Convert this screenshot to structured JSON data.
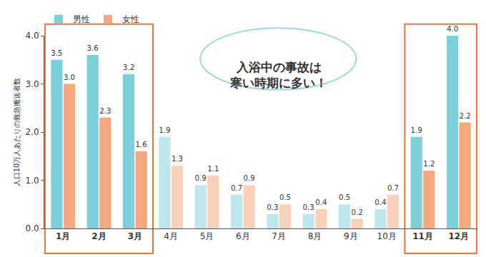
{
  "chart_data": {
    "type": "bar",
    "y_label": "人口10万人あたりの救急搬送者数",
    "categories": [
      "1月",
      "2月",
      "3月",
      "4月",
      "5月",
      "6月",
      "7月",
      "8月",
      "9月",
      "10月",
      "11月",
      "12月"
    ],
    "series": [
      {
        "name": "男性",
        "color": "#7ecfdc",
        "colors": [
          "#7ecfdc",
          "#7ecfdc",
          "#7ecfdc",
          "#bde6ee",
          "#bde6ee",
          "#bde6ee",
          "#bde6ee",
          "#bde6ee",
          "#bde6ee",
          "#bde6ee",
          "#7ecfdc",
          "#7ecfdc"
        ],
        "values": [
          3.5,
          3.6,
          3.2,
          1.9,
          0.9,
          0.7,
          0.3,
          0.3,
          0.5,
          0.4,
          1.9,
          4.0
        ],
        "value_labels": [
          "3.5",
          "3.6",
          "3.2",
          "1.9",
          "0.9",
          "0.7",
          "0.3",
          "0.3",
          "0.5",
          "0.4",
          "1.9",
          "4.0"
        ]
      },
      {
        "name": "女性",
        "color": "#f5a77e",
        "colors": [
          "#f5a77e",
          "#f5a77e",
          "#f5a77e",
          "#f9d0b8",
          "#f9d0b8",
          "#f9d0b8",
          "#f9d0b8",
          "#f9d0b8",
          "#f9d0b8",
          "#f9d0b8",
          "#f5a77e",
          "#f5a77e"
        ],
        "values": [
          3.0,
          2.3,
          1.6,
          1.3,
          1.1,
          0.9,
          0.5,
          0.4,
          0.2,
          0.7,
          1.2,
          2.2
        ],
        "value_labels": [
          "3.0",
          "2.3",
          "1.6",
          "1.3",
          "1.1",
          "0.9",
          "0.5",
          "0.4",
          "0.2",
          "0.7",
          "1.2",
          "2.2"
        ]
      }
    ],
    "ylim": [
      0,
      4.0
    ],
    "yticks": [
      {
        "value": 0,
        "label": "0.0"
      },
      {
        "value": 1,
        "label": "1.0"
      },
      {
        "value": 2,
        "label": "2.0"
      },
      {
        "value": 3,
        "label": "3.0"
      },
      {
        "value": 4,
        "label": "4.0"
      }
    ],
    "grid": false,
    "legend": "upper left",
    "data_labels": true,
    "annotations": [
      {
        "lines": [
          "入浴中の事故は",
          "寒い時期に多い！"
        ]
      }
    ]
  }
}
